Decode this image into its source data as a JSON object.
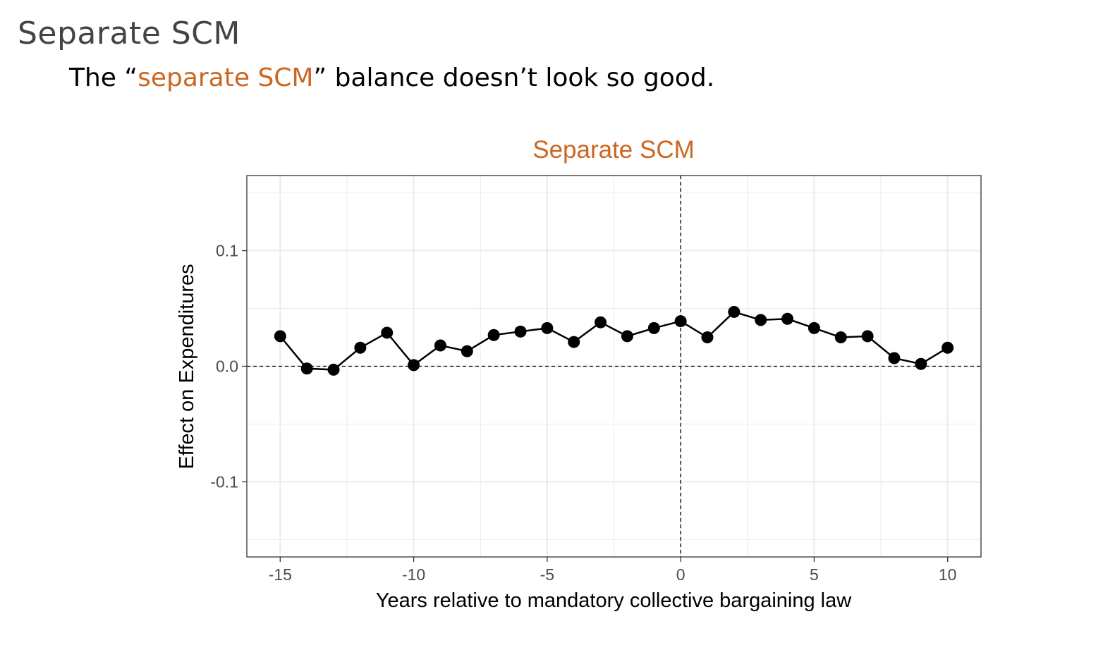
{
  "slide": {
    "title": "Separate SCM",
    "subtitle_pre": "The “",
    "subtitle_accent": "separate SCM",
    "subtitle_post": "” balance doesn’t look so good."
  },
  "colors": {
    "accent": "#cc6622",
    "text": "#000000",
    "title": "#444444",
    "grid": "#ebebeb",
    "points": "#000000"
  },
  "chart_data": {
    "type": "line",
    "title": "Separate SCM",
    "xlabel": "Years relative to mandatory collective bargaining law",
    "ylabel": "Effect on Expenditures",
    "xlim": [
      -16.25,
      11.25
    ],
    "ylim": [
      -0.165,
      0.165
    ],
    "xticks": [
      -15,
      -10,
      -5,
      0,
      5,
      10
    ],
    "xtick_labels": [
      "-15",
      "-10",
      "-5",
      "0",
      "5",
      "10"
    ],
    "yticks": [
      -0.1,
      0.0,
      0.1
    ],
    "ytick_labels": [
      "-0.1",
      "0.0",
      "0.1"
    ],
    "grid": true,
    "reference_lines": {
      "vertical_x": 0,
      "horizontal_y": 0,
      "style": "dashed"
    },
    "series": [
      {
        "x": [
          -15,
          -14,
          -13,
          -12,
          -11,
          -10,
          -9,
          -8,
          -7,
          -6,
          -5,
          -4,
          -3,
          -2,
          -1,
          0,
          1,
          2,
          3,
          4,
          5,
          6,
          7,
          8,
          9,
          10
        ],
        "y": [
          0.026,
          -0.002,
          -0.003,
          0.016,
          0.029,
          0.001,
          0.018,
          0.013,
          0.027,
          0.03,
          0.033,
          0.021,
          0.038,
          0.026,
          0.033,
          0.039,
          0.025,
          0.047,
          0.04,
          0.041,
          0.033,
          0.025,
          0.026,
          0.007,
          0.002,
          0.016
        ]
      }
    ]
  }
}
